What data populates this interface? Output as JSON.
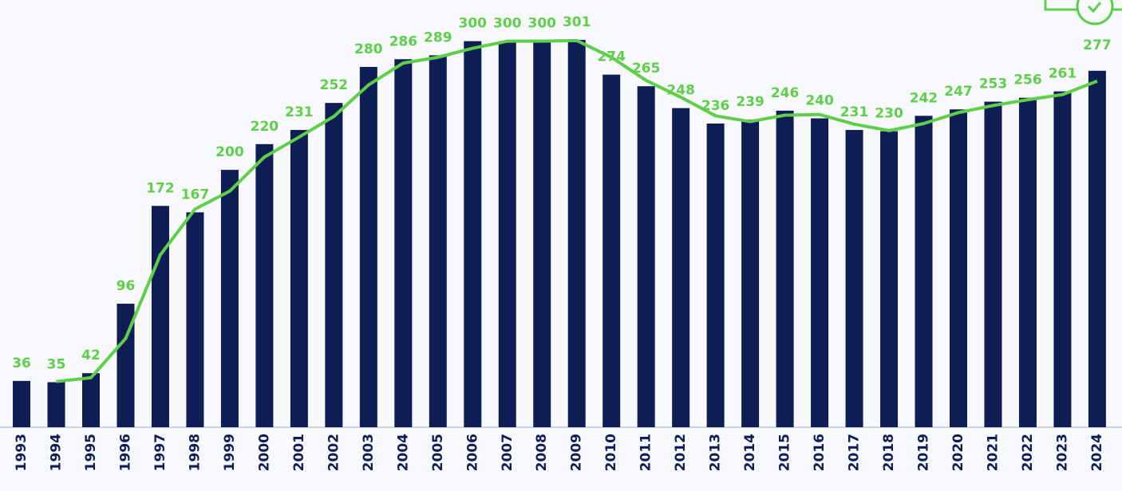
{
  "chart_data": {
    "type": "bar",
    "categories": [
      "1993",
      "1994",
      "1995",
      "1996",
      "1997",
      "1998",
      "1999",
      "2000",
      "2001",
      "2002",
      "2003",
      "2004",
      "2005",
      "2006",
      "2007",
      "2008",
      "2009",
      "2010",
      "2011",
      "2012",
      "2013",
      "2014",
      "2015",
      "2016",
      "2017",
      "2018",
      "2019",
      "2020",
      "2021",
      "2022",
      "2023",
      "2024"
    ],
    "values": [
      36,
      35,
      42,
      96,
      172,
      167,
      200,
      220,
      231,
      252,
      280,
      286,
      289,
      300,
      300,
      300,
      301,
      274,
      265,
      248,
      236,
      239,
      246,
      240,
      231,
      230,
      242,
      247,
      253,
      256,
      261,
      277
    ],
    "color": "#0f1d55",
    "line_values": [
      null,
      35.5,
      38.5,
      69,
      134,
      169.5,
      183.5,
      210,
      225.5,
      241.5,
      266,
      283,
      287.5,
      294.5,
      300,
      300,
      300.5,
      287.5,
      269.5,
      256.5,
      242,
      237.5,
      242.5,
      243,
      235.5,
      230.5,
      236,
      244.5,
      250,
      254.5,
      258.5,
      269
    ],
    "line_color": "#5fcf4a",
    "ylim": [
      0,
      332
    ]
  }
}
